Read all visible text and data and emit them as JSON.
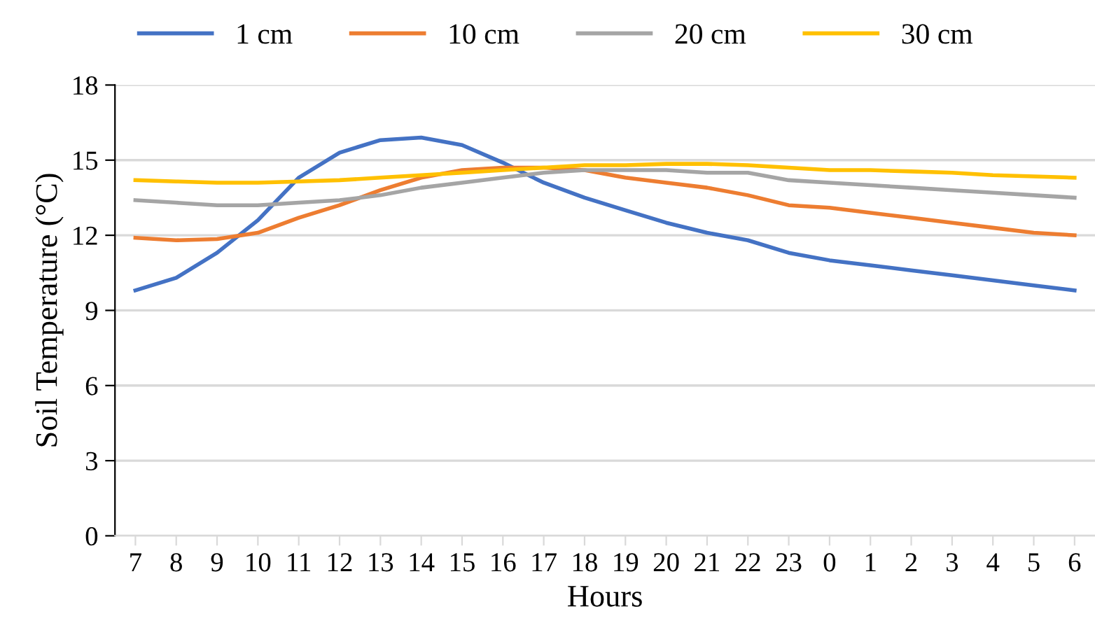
{
  "chart_data": {
    "type": "line",
    "xlabel": "Hours",
    "ylabel": "Soil Temperature (°C)",
    "categories": [
      "7",
      "8",
      "9",
      "10",
      "11",
      "12",
      "13",
      "14",
      "15",
      "16",
      "17",
      "18",
      "19",
      "20",
      "21",
      "22",
      "23",
      "0",
      "1",
      "2",
      "3",
      "4",
      "5",
      "6"
    ],
    "series": [
      {
        "name": "1 cm",
        "color": "#4472c4",
        "values": [
          9.8,
          10.3,
          11.3,
          12.6,
          14.3,
          15.3,
          15.8,
          15.9,
          15.6,
          14.9,
          14.1,
          13.5,
          13.0,
          12.5,
          12.1,
          11.8,
          11.3,
          11.0,
          10.8,
          10.6,
          10.4,
          10.2,
          10.0,
          9.8
        ]
      },
      {
        "name": "10 cm",
        "color": "#ed7d31",
        "values": [
          11.9,
          11.8,
          11.85,
          12.1,
          12.7,
          13.2,
          13.8,
          14.3,
          14.6,
          14.7,
          14.7,
          14.6,
          14.3,
          14.1,
          13.9,
          13.6,
          13.2,
          13.1,
          12.9,
          12.7,
          12.5,
          12.3,
          12.1,
          12.0
        ]
      },
      {
        "name": "20 cm",
        "color": "#a5a5a5",
        "values": [
          13.4,
          13.3,
          13.2,
          13.2,
          13.3,
          13.4,
          13.6,
          13.9,
          14.1,
          14.3,
          14.5,
          14.6,
          14.6,
          14.6,
          14.5,
          14.5,
          14.2,
          14.1,
          14.0,
          13.9,
          13.8,
          13.7,
          13.6,
          13.5
        ]
      },
      {
        "name": "30 cm",
        "color": "#ffc000",
        "values": [
          14.2,
          14.15,
          14.1,
          14.1,
          14.15,
          14.2,
          14.3,
          14.4,
          14.5,
          14.6,
          14.7,
          14.8,
          14.8,
          14.85,
          14.85,
          14.8,
          14.7,
          14.6,
          14.6,
          14.55,
          14.5,
          14.4,
          14.35,
          14.3
        ]
      }
    ],
    "ylim": [
      0,
      18
    ],
    "yticks": [
      0,
      3,
      6,
      9,
      12,
      15,
      18
    ],
    "grid": "y",
    "legend": "top",
    "marker": "none",
    "line_style": "solid"
  }
}
